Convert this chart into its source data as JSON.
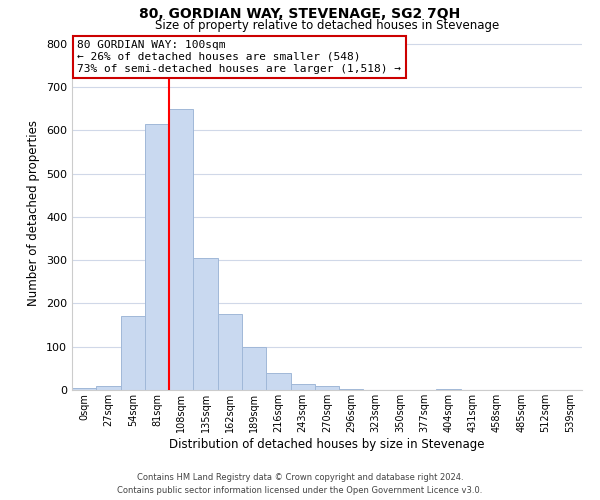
{
  "title": "80, GORDIAN WAY, STEVENAGE, SG2 7QH",
  "subtitle": "Size of property relative to detached houses in Stevenage",
  "xlabel": "Distribution of detached houses by size in Stevenage",
  "ylabel": "Number of detached properties",
  "bar_labels": [
    "0sqm",
    "27sqm",
    "54sqm",
    "81sqm",
    "108sqm",
    "135sqm",
    "162sqm",
    "189sqm",
    "216sqm",
    "243sqm",
    "270sqm",
    "296sqm",
    "323sqm",
    "350sqm",
    "377sqm",
    "404sqm",
    "431sqm",
    "458sqm",
    "485sqm",
    "512sqm",
    "539sqm"
  ],
  "bar_values": [
    5,
    10,
    170,
    615,
    650,
    305,
    175,
    100,
    40,
    15,
    10,
    2,
    0,
    0,
    0,
    2,
    0,
    0,
    0,
    0,
    0
  ],
  "bar_color": "#c9d9f0",
  "bar_edge_color": "#a0b8d8",
  "vline_x": 3.5,
  "vline_color": "red",
  "ylim": [
    0,
    820
  ],
  "yticks": [
    0,
    100,
    200,
    300,
    400,
    500,
    600,
    700,
    800
  ],
  "annotation_title": "80 GORDIAN WAY: 100sqm",
  "annotation_line1": "← 26% of detached houses are smaller (548)",
  "annotation_line2": "73% of semi-detached houses are larger (1,518) →",
  "annotation_box_color": "#ffffff",
  "annotation_box_edge": "#cc0000",
  "footer_line1": "Contains HM Land Registry data © Crown copyright and database right 2024.",
  "footer_line2": "Contains public sector information licensed under the Open Government Licence v3.0.",
  "background_color": "#ffffff",
  "grid_color": "#d0d8e8"
}
